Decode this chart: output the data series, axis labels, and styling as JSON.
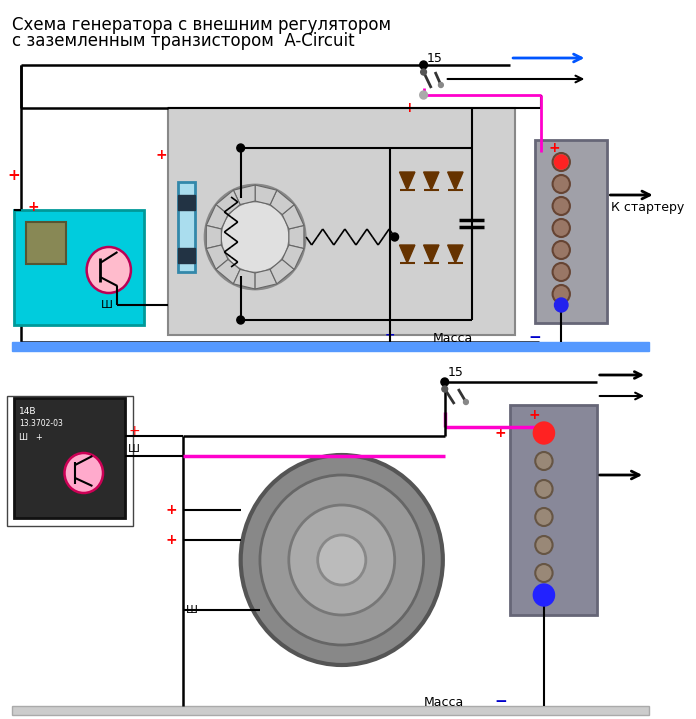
{
  "title_line1": "Схема генератора с внешним регулятором",
  "title_line2": "с заземленным транзистором  A-Circuit",
  "title_fontsize": 12,
  "bg_color": "#ffffff",
  "d1": {
    "ground_bar_color": "#5599ff",
    "reg_box_color": "#00ccdd",
    "gen_box_color": "#d0d0d0",
    "bat_box_color": "#aaaaaa",
    "wire_black": "#000000",
    "wire_pink": "#ff00cc",
    "wire_blue": "#0055ff",
    "plus_color": "#ff0000",
    "minus_color": "#0000cc",
    "diode_color": "#663300",
    "label_massa": "Масса",
    "label_15": "15",
    "label_k_starter": "К стартеру",
    "label_sh": "Ш"
  },
  "d2": {
    "wire_black": "#000000",
    "wire_pink": "#ff00cc",
    "plus_color": "#ff0000",
    "minus_color": "#0000cc",
    "label_massa": "Масса",
    "label_15": "15",
    "label_sh": "Ш",
    "dot_red": "#ff2222",
    "dot_blue": "#2222ff",
    "bat_box_color": "#888899"
  }
}
